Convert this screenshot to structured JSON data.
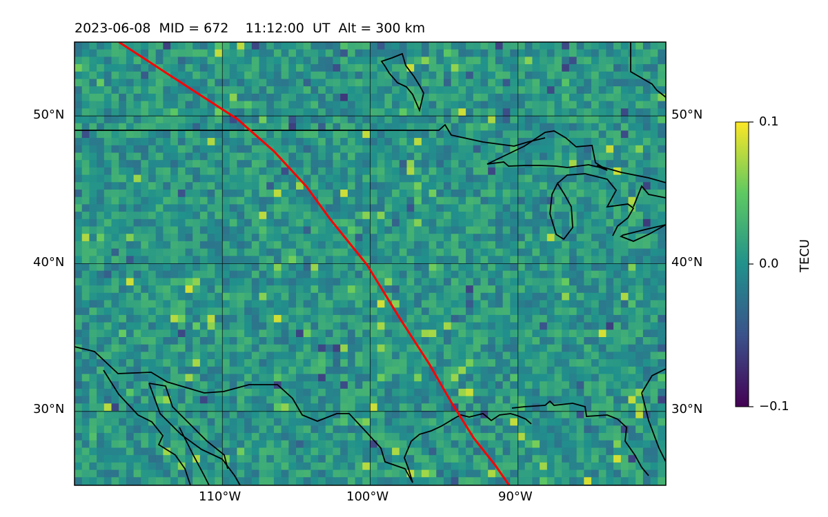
{
  "header": {
    "title": "2023-06-08  MID = 672    11:12:00  UT  Alt = 300 km"
  },
  "map": {
    "lat_range": [
      25,
      55
    ],
    "lon_range": [
      -120,
      -80
    ],
    "lat_gridlines": [
      30,
      40,
      50
    ],
    "lon_gridlines": [
      -110,
      -100,
      -90
    ],
    "lat_labels": [
      "30°N",
      "40°N",
      "50°N"
    ],
    "lon_labels": [
      "110°W",
      "100°W",
      "90°W"
    ],
    "track_color": "#ff0000",
    "track": [
      [
        -117,
        55
      ],
      [
        -112.4,
        52
      ],
      [
        -109,
        49.8
      ],
      [
        -106.5,
        47.6
      ],
      [
        -104.3,
        45.2
      ],
      [
        -102.7,
        43
      ],
      [
        -100.2,
        39.9
      ],
      [
        -98,
        36.3
      ],
      [
        -96,
        33.2
      ],
      [
        -94.5,
        30.6
      ],
      [
        -93,
        28.2
      ],
      [
        -91.5,
        26.3
      ],
      [
        -90.6,
        25
      ]
    ]
  },
  "colorbar": {
    "label": "TECU",
    "ticks": [
      "0.1",
      "0.0",
      "−0.1"
    ],
    "min": -0.1,
    "max": 0.1,
    "colormap": "viridis"
  }
}
